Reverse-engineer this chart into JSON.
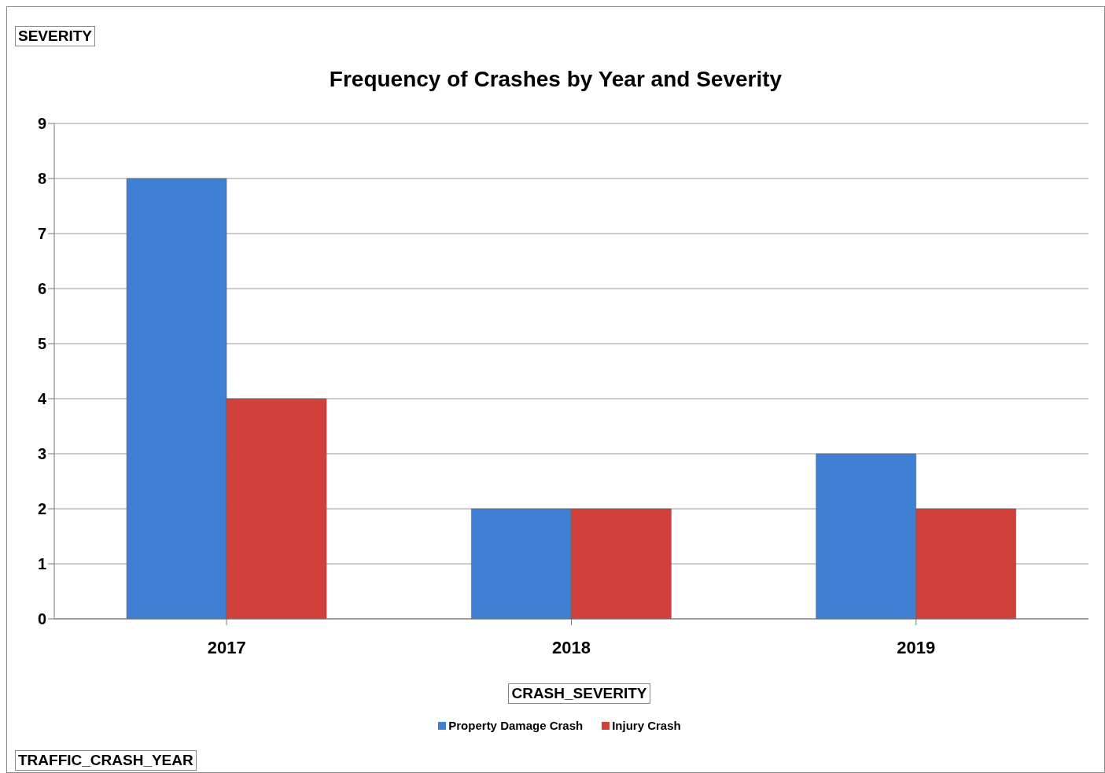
{
  "chart_data": {
    "type": "bar",
    "title": "Frequency of Crashes by Year and Severity",
    "annotations": [
      "SEVERITY",
      "TRAFFIC_CRASH_YEAR"
    ],
    "legend_title": "CRASH_SEVERITY",
    "categories": [
      "2017",
      "2018",
      "2019"
    ],
    "series": [
      {
        "name": "Property Damage Crash",
        "color": "#3f80d4",
        "values": [
          8,
          2,
          3
        ]
      },
      {
        "name": "Injury Crash",
        "color": "#d2403c",
        "values": [
          4,
          2,
          2
        ]
      }
    ],
    "ylim": [
      0,
      9
    ],
    "yticks": [
      0,
      1,
      2,
      3,
      4,
      5,
      6,
      7,
      8,
      9
    ],
    "grid": "y",
    "legend": "bottom"
  }
}
